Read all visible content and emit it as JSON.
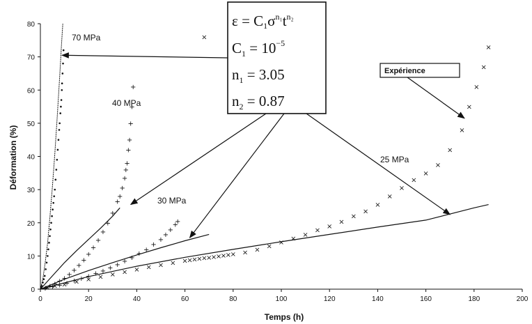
{
  "chart_data": {
    "type": "scatter",
    "title": "",
    "xlabel": "Temps (h)",
    "ylabel": "Déformation (%)",
    "xlim": [
      0,
      200
    ],
    "ylim": [
      0,
      80
    ],
    "xticks": [
      0,
      20,
      40,
      60,
      80,
      100,
      120,
      140,
      160,
      180,
      200
    ],
    "yticks": [
      0,
      10,
      20,
      30,
      40,
      50,
      60,
      70,
      80
    ],
    "grid": false,
    "legend": {
      "label": "Expérience",
      "placement": "top-right"
    },
    "equation": {
      "line1": {
        "lhs": "ε = C",
        "sub1": "1",
        "mid": "σ",
        "sup1": "n₁",
        "t": "t",
        "sup2": "n₂"
      },
      "line2": {
        "text": "C",
        "sub": "1",
        "eq": " = 10",
        "sup": "−5"
      },
      "line3": {
        "text": "n",
        "sub": "1",
        "eq": " = 3.05"
      },
      "line4": {
        "text": "n",
        "sub": "2",
        "eq": " = 0.87"
      }
    },
    "series": [
      {
        "name": "70 MPa",
        "marker": "dot",
        "experiment": [
          [
            0.3,
            0.5
          ],
          [
            0.6,
            1
          ],
          [
            1,
            2
          ],
          [
            1.4,
            3
          ],
          [
            1.8,
            4
          ],
          [
            2.2,
            6
          ],
          [
            2.6,
            8
          ],
          [
            3,
            10
          ],
          [
            3.3,
            12
          ],
          [
            3.6,
            14
          ],
          [
            3.9,
            16
          ],
          [
            4.2,
            18
          ],
          [
            4.5,
            20
          ],
          [
            4.8,
            22
          ],
          [
            5.1,
            24
          ],
          [
            5.4,
            26
          ],
          [
            5.7,
            28
          ],
          [
            6,
            30
          ],
          [
            6.3,
            33
          ],
          [
            6.6,
            36
          ],
          [
            6.9,
            39
          ],
          [
            7.2,
            42
          ],
          [
            7.5,
            45
          ],
          [
            7.8,
            48
          ],
          [
            8,
            50
          ],
          [
            8.3,
            53
          ],
          [
            8.5,
            55
          ],
          [
            8.7,
            57
          ],
          [
            8.9,
            60
          ],
          [
            9,
            62
          ],
          [
            9.2,
            65
          ],
          [
            9.4,
            68
          ],
          [
            9.6,
            72
          ]
        ],
        "model": [
          [
            0,
            0
          ],
          [
            1,
            3
          ],
          [
            2,
            8
          ],
          [
            3,
            14
          ],
          [
            4,
            22
          ],
          [
            5,
            31
          ],
          [
            6,
            41
          ],
          [
            7,
            52
          ],
          [
            8,
            64
          ],
          [
            8.8,
            74
          ],
          [
            9.3,
            80
          ]
        ]
      },
      {
        "name": "40 MPa",
        "marker": "plus",
        "experiment": [
          [
            2,
            0.4
          ],
          [
            4,
            1
          ],
          [
            6,
            1.7
          ],
          [
            8,
            2.5
          ],
          [
            10,
            3.4
          ],
          [
            12,
            4.5
          ],
          [
            14,
            5.8
          ],
          [
            16,
            7.2
          ],
          [
            18,
            8.8
          ],
          [
            20,
            10.6
          ],
          [
            22,
            12.6
          ],
          [
            24,
            14.8
          ],
          [
            26,
            17.3
          ],
          [
            28,
            20
          ],
          [
            30,
            23
          ],
          [
            32,
            26.5
          ],
          [
            33,
            28
          ],
          [
            34,
            30.5
          ],
          [
            35,
            33.5
          ],
          [
            35.5,
            36
          ],
          [
            36,
            38
          ],
          [
            36.5,
            42
          ],
          [
            37,
            45
          ],
          [
            37.5,
            50
          ],
          [
            38,
            55
          ],
          [
            38.5,
            61
          ]
        ],
        "model": [
          [
            0,
            0
          ],
          [
            5,
            4
          ],
          [
            10,
            8
          ],
          [
            15,
            11.6
          ],
          [
            20,
            15
          ],
          [
            25,
            18.4
          ],
          [
            30,
            22
          ],
          [
            33,
            24.5
          ]
        ]
      },
      {
        "name": "30 MPa",
        "marker": "plus",
        "experiment": [
          [
            2,
            0.3
          ],
          [
            5,
            0.8
          ],
          [
            8,
            1.3
          ],
          [
            11,
            1.9
          ],
          [
            14,
            2.6
          ],
          [
            17,
            3.3
          ],
          [
            20,
            4
          ],
          [
            23,
            4.8
          ],
          [
            26,
            5.6
          ],
          [
            29,
            6.5
          ],
          [
            32,
            7.5
          ],
          [
            35,
            8.5
          ],
          [
            38,
            9.6
          ],
          [
            41,
            10.8
          ],
          [
            44,
            12
          ],
          [
            47,
            13.5
          ],
          [
            50,
            15
          ],
          [
            52,
            16.5
          ],
          [
            54,
            18
          ],
          [
            56,
            19.5
          ],
          [
            57,
            20.5
          ]
        ],
        "model": [
          [
            0,
            0
          ],
          [
            10,
            3
          ],
          [
            20,
            5.6
          ],
          [
            30,
            8
          ],
          [
            40,
            10.3
          ],
          [
            50,
            12.5
          ],
          [
            60,
            14.6
          ],
          [
            70,
            16.5
          ]
        ]
      },
      {
        "name": "25 MPa",
        "marker": "x",
        "experiment": [
          [
            3,
            0.5
          ],
          [
            6,
            1
          ],
          [
            10,
            1.5
          ],
          [
            15,
            2.3
          ],
          [
            20,
            3
          ],
          [
            25,
            3.8
          ],
          [
            30,
            4.5
          ],
          [
            35,
            5.2
          ],
          [
            40,
            6
          ],
          [
            45,
            6.7
          ],
          [
            50,
            7.3
          ],
          [
            55,
            8
          ],
          [
            60,
            8.6
          ],
          [
            62,
            8.8
          ],
          [
            64,
            9
          ],
          [
            66,
            9.2
          ],
          [
            68,
            9.4
          ],
          [
            70,
            9.6
          ],
          [
            72,
            9.8
          ],
          [
            74,
            10
          ],
          [
            76,
            10.2
          ],
          [
            78,
            10.4
          ],
          [
            80,
            10.6
          ],
          [
            85,
            11.1
          ],
          [
            90,
            12
          ],
          [
            95,
            13
          ],
          [
            100,
            14.2
          ],
          [
            105,
            15.3
          ],
          [
            110,
            16.5
          ],
          [
            115,
            17.8
          ],
          [
            120,
            19
          ],
          [
            125,
            20.4
          ],
          [
            130,
            22
          ],
          [
            135,
            23.5
          ],
          [
            140,
            25.5
          ],
          [
            145,
            28
          ],
          [
            150,
            30.5
          ],
          [
            155,
            33
          ],
          [
            160,
            35
          ],
          [
            165,
            37.5
          ],
          [
            170,
            42
          ],
          [
            175,
            48
          ],
          [
            178,
            55
          ],
          [
            181,
            61
          ],
          [
            184,
            67
          ],
          [
            186,
            73
          ],
          [
            68,
            76
          ]
        ],
        "model": [
          [
            0,
            0
          ],
          [
            20,
            3.8
          ],
          [
            40,
            6.9
          ],
          [
            60,
            9.6
          ],
          [
            80,
            12
          ],
          [
            100,
            14.3
          ],
          [
            120,
            16.5
          ],
          [
            140,
            18.7
          ],
          [
            160,
            20.8
          ],
          [
            180,
            24.5
          ],
          [
            186,
            25.5
          ]
        ]
      }
    ]
  }
}
